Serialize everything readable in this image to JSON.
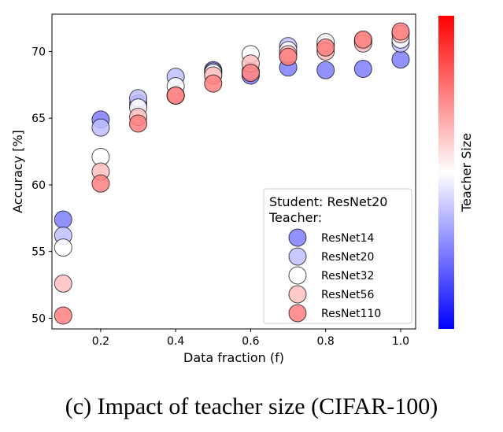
{
  "chart_data": {
    "type": "scatter",
    "xlabel": "Data fraction (f)",
    "ylabel": "Accuracy [%]",
    "xlim": [
      0.07,
      1.04
    ],
    "ylim": [
      49.2,
      72.8
    ],
    "xticks": [
      0.2,
      0.4,
      0.6,
      0.8,
      1.0
    ],
    "xtick_labels": [
      "0.2",
      "0.4",
      "0.6",
      "0.8",
      "1.0"
    ],
    "yticks": [
      50,
      55,
      60,
      65,
      70
    ],
    "ytick_labels": [
      "50",
      "55",
      "60",
      "65",
      "70"
    ],
    "x": [
      0.1,
      0.2,
      0.3,
      0.4,
      0.5,
      0.6,
      0.7,
      0.8,
      0.9,
      1.0
    ],
    "series": [
      {
        "name": "ResNet14",
        "color": "#7f7fff",
        "values": [
          57.4,
          64.9,
          66.1,
          66.7,
          68.6,
          68.2,
          68.8,
          68.6,
          68.7,
          69.4
        ]
      },
      {
        "name": "ResNet20",
        "color": "#c0c0ff",
        "values": [
          56.2,
          64.3,
          66.5,
          68.1,
          68.5,
          68.5,
          70.4,
          70.5,
          70.8,
          70.6
        ]
      },
      {
        "name": "ResNet32",
        "color": "#ffffff",
        "values": [
          55.3,
          62.1,
          65.8,
          67.4,
          68.4,
          69.8,
          70.1,
          70.7,
          70.8,
          70.9
        ]
      },
      {
        "name": "ResNet56",
        "color": "#ffc0c0",
        "values": [
          52.6,
          61.0,
          65.1,
          66.7,
          68.2,
          69.1,
          69.8,
          70.0,
          70.6,
          71.3
        ]
      },
      {
        "name": "ResNet110",
        "color": "#ff7f7f",
        "values": [
          50.2,
          60.1,
          64.6,
          66.7,
          67.6,
          68.4,
          69.6,
          70.3,
          70.9,
          71.5
        ]
      }
    ],
    "legend": {
      "title_line1": "Student: ResNet20",
      "title_line2": "Teacher:",
      "placement": "lower-right"
    },
    "colorbar": {
      "label": "Teacher Size",
      "colormap": "bwr"
    }
  },
  "caption": "(c) Impact of teacher size (CIFAR-100)"
}
